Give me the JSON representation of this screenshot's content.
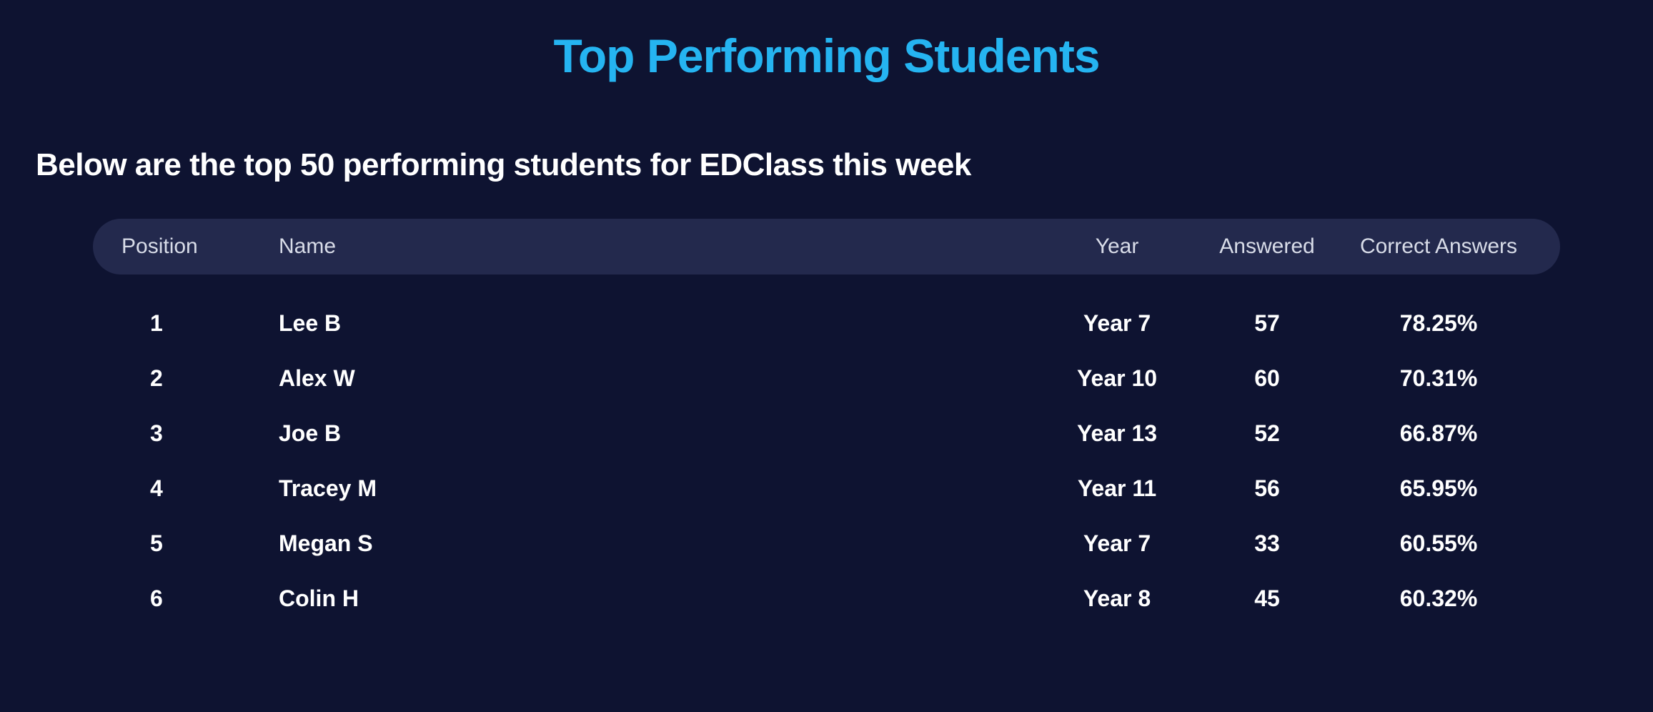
{
  "title": "Top Performing Students",
  "subtitle": "Below are the top 50 performing students for EDClass this week",
  "colors": {
    "background": "#0e1331",
    "title": "#25b4f1",
    "text": "#ffffff",
    "header_bg": "#23294d",
    "header_text": "#d8dce8"
  },
  "columns": {
    "position": "Position",
    "name": "Name",
    "year": "Year",
    "answered": "Answered",
    "correct": "Correct Answers"
  },
  "rows": [
    {
      "position": "1",
      "name": "Lee B",
      "year": "Year 7",
      "answered": "57",
      "correct": "78.25%"
    },
    {
      "position": "2",
      "name": "Alex W",
      "year": "Year 10",
      "answered": "60",
      "correct": "70.31%"
    },
    {
      "position": "3",
      "name": "Joe B",
      "year": "Year 13",
      "answered": "52",
      "correct": "66.87%"
    },
    {
      "position": "4",
      "name": "Tracey M",
      "year": "Year 11",
      "answered": "56",
      "correct": "65.95%"
    },
    {
      "position": "5",
      "name": "Megan S",
      "year": "Year 7",
      "answered": "33",
      "correct": "60.55%"
    },
    {
      "position": "6",
      "name": "Colin H",
      "year": "Year 8",
      "answered": "45",
      "correct": "60.32%"
    }
  ]
}
